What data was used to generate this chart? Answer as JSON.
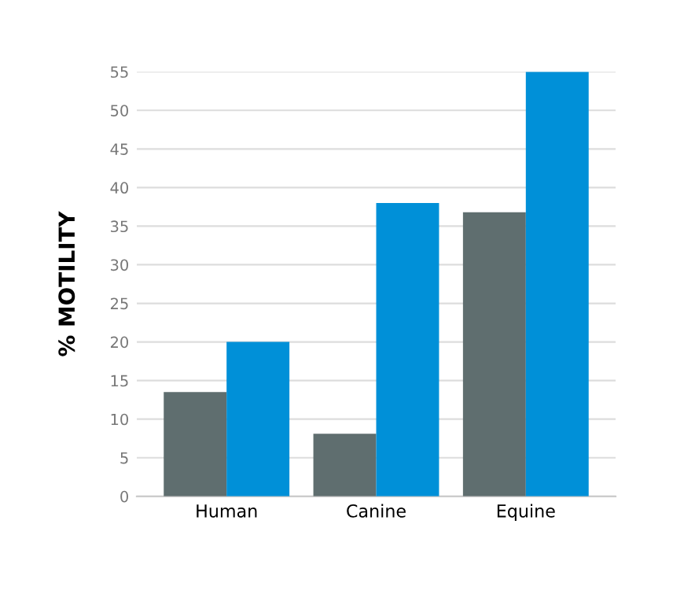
{
  "chart_data": {
    "type": "bar",
    "ylabel": "% MOTILITY",
    "categories": [
      "Human",
      "Canine",
      "Equine"
    ],
    "series": [
      {
        "color": "#5f6e6f",
        "values": [
          13.5,
          8.1,
          36.8
        ]
      },
      {
        "color": "#0090d8",
        "values": [
          20.0,
          38.0,
          55.0
        ]
      }
    ],
    "ylim": [
      0,
      55
    ],
    "yticks": [
      0,
      5,
      10,
      15,
      20,
      25,
      30,
      35,
      40,
      45,
      50,
      55
    ],
    "grid": "y"
  }
}
